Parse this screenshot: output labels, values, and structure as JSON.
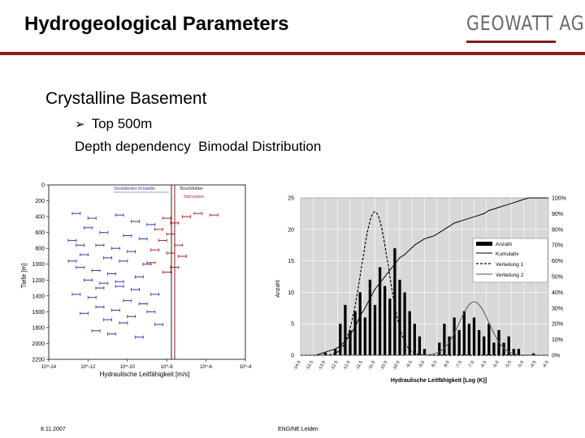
{
  "slide": {
    "title": "Hydrogeological Parameters",
    "logo_text": "GEOWATT AG",
    "heading": "Crystalline Basement",
    "bullet": "Top 500m",
    "line2": "Depth dependency  Bimodal Distribution",
    "footer_date": "8.11.2007",
    "footer_org": "ENGINE Leiden",
    "accent_color": "#8b1a1a"
  },
  "chart_data": [
    {
      "type": "scatter",
      "title": "",
      "xlabel": "Hydraulische Leitfähigkeit [m/s]",
      "ylabel": "Tiefe [m]",
      "y_ticks": [
        "0",
        "200",
        "400",
        "600",
        "800",
        "1000",
        "1200",
        "1400",
        "1600",
        "1800",
        "2000",
        "2200"
      ],
      "x_ticks": [
        "10^-14",
        "10^-12",
        "10^-10",
        "10^-8",
        "10^-6",
        "10^-4"
      ],
      "x_scale": "log",
      "xlim": [
        -14,
        -4
      ],
      "ylim": [
        0,
        2200
      ],
      "annotations": [
        "Verwittertes Kristallin",
        "Bruchfelder",
        "Störzonen"
      ],
      "series": [
        {
          "name": "Verwittertes Kristallin",
          "color": "#3333aa",
          "points": [
            [
              -12.6,
              360
            ],
            [
              -11.8,
              420
            ],
            [
              -10.4,
              380
            ],
            [
              -9.6,
              460
            ],
            [
              -8.8,
              500
            ],
            [
              -12.0,
              540
            ],
            [
              -11.2,
              600
            ],
            [
              -10.0,
              640
            ],
            [
              -9.2,
              680
            ],
            [
              -12.8,
              700
            ],
            [
              -11.4,
              760
            ],
            [
              -10.6,
              800
            ],
            [
              -9.8,
              840
            ],
            [
              -12.2,
              880
            ],
            [
              -11.0,
              920
            ],
            [
              -10.2,
              960
            ],
            [
              -9.0,
              1000
            ],
            [
              -12.4,
              1040
            ],
            [
              -11.6,
              1080
            ],
            [
              -10.8,
              1120
            ],
            [
              -9.4,
              1160
            ],
            [
              -12.0,
              1200
            ],
            [
              -11.2,
              1240
            ],
            [
              -10.4,
              1280
            ],
            [
              -9.6,
              1320
            ],
            [
              -12.6,
              1380
            ],
            [
              -11.8,
              1420
            ],
            [
              -10.0,
              1460
            ],
            [
              -9.2,
              1500
            ],
            [
              -11.4,
              1540
            ],
            [
              -10.6,
              1580
            ],
            [
              -12.2,
              1620
            ],
            [
              -9.8,
              1660
            ],
            [
              -11.0,
              1700
            ],
            [
              -10.2,
              1740
            ],
            [
              -8.8,
              1600
            ],
            [
              -8.4,
              1760
            ],
            [
              -11.6,
              1840
            ],
            [
              -10.8,
              1880
            ],
            [
              -9.4,
              1920
            ],
            [
              -12.8,
              960
            ],
            [
              -11.4,
              1300
            ],
            [
              -8.6,
              1380
            ],
            [
              -10.4,
              1220
            ],
            [
              -12.4,
              760
            ]
          ]
        },
        {
          "name": "Störzonen",
          "color": "#aa2222",
          "points": [
            [
              -8.0,
              420
            ],
            [
              -7.6,
              480
            ],
            [
              -8.4,
              560
            ],
            [
              -7.8,
              620
            ],
            [
              -8.2,
              700
            ],
            [
              -7.4,
              760
            ],
            [
              -8.6,
              820
            ],
            [
              -7.2,
              900
            ],
            [
              -8.8,
              980
            ],
            [
              -7.0,
              400
            ],
            [
              -6.4,
              360
            ],
            [
              -5.6,
              380
            ],
            [
              -7.6,
              1040
            ],
            [
              -8.0,
              1100
            ],
            [
              -7.8,
              860
            ]
          ]
        }
      ]
    },
    {
      "type": "bar",
      "title": "",
      "xlabel": "Hydraulische Leitfähigkeit [Log (K)]",
      "ylabel": "Anzahl",
      "ylim": [
        0,
        25
      ],
      "y2lim": [
        0,
        100
      ],
      "y_ticks": [
        "0",
        "5",
        "10",
        "15",
        "20",
        "25"
      ],
      "y2_ticks": [
        "0%",
        "10%",
        "20%",
        "30%",
        "40%",
        "50%",
        "60%",
        "70%",
        "80%",
        "90%",
        "100%"
      ],
      "x_ticks": [
        "-14.0",
        "-13.5",
        "-13.0",
        "-12.5",
        "-12.0",
        "-11.5",
        "-11.0",
        "-10.5",
        "-10.0",
        "-9.5",
        "-9.0",
        "-8.5",
        "-8.0",
        "-7.5",
        "-7.0",
        "-6.5",
        "-6.0",
        "-5.5",
        "-5.0",
        "-4.5",
        "-4.0"
      ],
      "x": [
        -14.0,
        -13.8,
        -13.6,
        -13.4,
        -13.2,
        -13.0,
        -12.8,
        -12.6,
        -12.4,
        -12.2,
        -12.0,
        -11.8,
        -11.6,
        -11.4,
        -11.2,
        -11.0,
        -10.8,
        -10.6,
        -10.4,
        -10.2,
        -10.0,
        -9.8,
        -9.6,
        -9.4,
        -9.2,
        -9.0,
        -8.8,
        -8.6,
        -8.4,
        -8.2,
        -8.0,
        -7.8,
        -7.6,
        -7.4,
        -7.2,
        -7.0,
        -6.8,
        -6.6,
        -6.4,
        -6.2,
        -6.0,
        -5.8,
        -5.6,
        -5.4,
        -5.2,
        -5.0,
        -4.8,
        -4.6,
        -4.4,
        -4.2,
        -4.0
      ],
      "series": [
        {
          "name": "Anzahl",
          "values": [
            0,
            0,
            0,
            0,
            0,
            0.4,
            0,
            1,
            5,
            8,
            4,
            7,
            10,
            6,
            12,
            8,
            14,
            11,
            9,
            17,
            12,
            10,
            7,
            5,
            3,
            1,
            0,
            0,
            2,
            5,
            3,
            6,
            4,
            7,
            5,
            6,
            4,
            3,
            5,
            2,
            4,
            2,
            3,
            1,
            1,
            0,
            0,
            0.3,
            0,
            0,
            0
          ]
        },
        {
          "name": "Kumulativ",
          "values": [
            0,
            0,
            0,
            0,
            1,
            2,
            3,
            4,
            6,
            9,
            13,
            18,
            25,
            30,
            36,
            42,
            46,
            50,
            54,
            58,
            62,
            64,
            67,
            70,
            72,
            74,
            75,
            76,
            78,
            80,
            82,
            84,
            85,
            86,
            87,
            88,
            89,
            90,
            92,
            93,
            94,
            95,
            96,
            97,
            98,
            99,
            100,
            100,
            100,
            100,
            100
          ]
        },
        {
          "name": "Verteilung 1",
          "mean": -11.0,
          "sd": 0.55,
          "peak": 22.8
        },
        {
          "name": "Verteilung 2",
          "mean": -7.0,
          "sd": 0.6,
          "peak": 8.5
        }
      ]
    }
  ]
}
